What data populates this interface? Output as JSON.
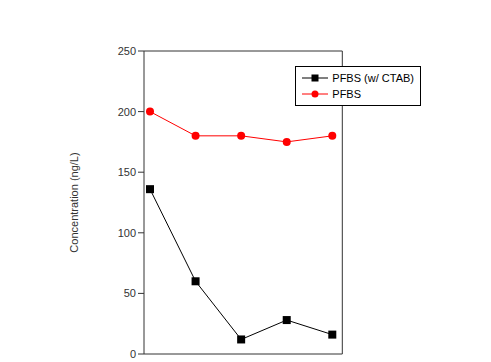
{
  "chart_data": {
    "type": "line",
    "y_label": "Concentration (ng/L)",
    "categories": [
      null,
      null,
      null,
      null,
      null
    ],
    "series": [
      {
        "name": "PFBS (w/ CTAB)",
        "color": "#000000",
        "marker": "square",
        "values": [
          136,
          60,
          12,
          28,
          16
        ]
      },
      {
        "name": "PFBS",
        "color": "#ff0000",
        "marker": "circle",
        "values": [
          200,
          180,
          180,
          175,
          180
        ]
      }
    ],
    "ylim": [
      0,
      250
    ],
    "yticks": [
      0,
      50,
      100,
      150,
      200,
      250
    ],
    "tick_labels": "y",
    "legend": "upper right"
  }
}
